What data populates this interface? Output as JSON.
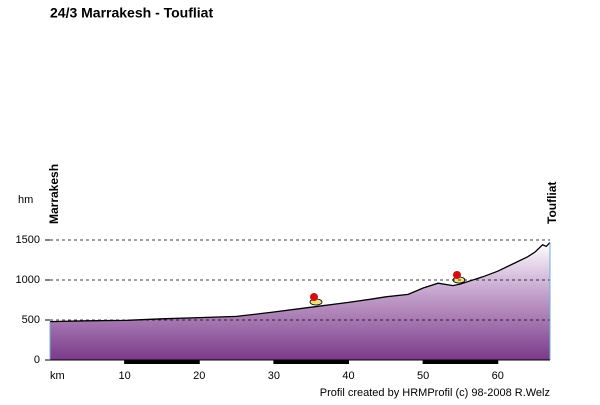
{
  "chart_data": {
    "type": "area",
    "title": "24/3 Marrakesh - Toufliat",
    "y_label": "hm",
    "x_label": "km",
    "start_label": "Marrakesh",
    "end_label": "Toufliat",
    "credit": "Profil created by HRMProfil (c) 98-2008 R.Welz",
    "x": [
      0,
      5,
      10,
      15,
      20,
      25,
      30,
      35,
      40,
      43,
      45,
      48,
      50,
      52,
      54,
      55,
      58,
      60,
      62,
      64,
      65,
      66,
      66.5,
      67
    ],
    "values": [
      480,
      490,
      495,
      515,
      530,
      545,
      600,
      660,
      720,
      760,
      790,
      820,
      900,
      960,
      930,
      950,
      1040,
      1110,
      1200,
      1290,
      1350,
      1440,
      1420,
      1470
    ],
    "color": "#7a3a8a",
    "xlim": [
      0,
      67
    ],
    "ylim": [
      0,
      1500
    ],
    "xticks": [
      10,
      20,
      30,
      40,
      50,
      60
    ],
    "yticks": [
      0,
      500,
      1000,
      1500
    ],
    "grid": true
  }
}
